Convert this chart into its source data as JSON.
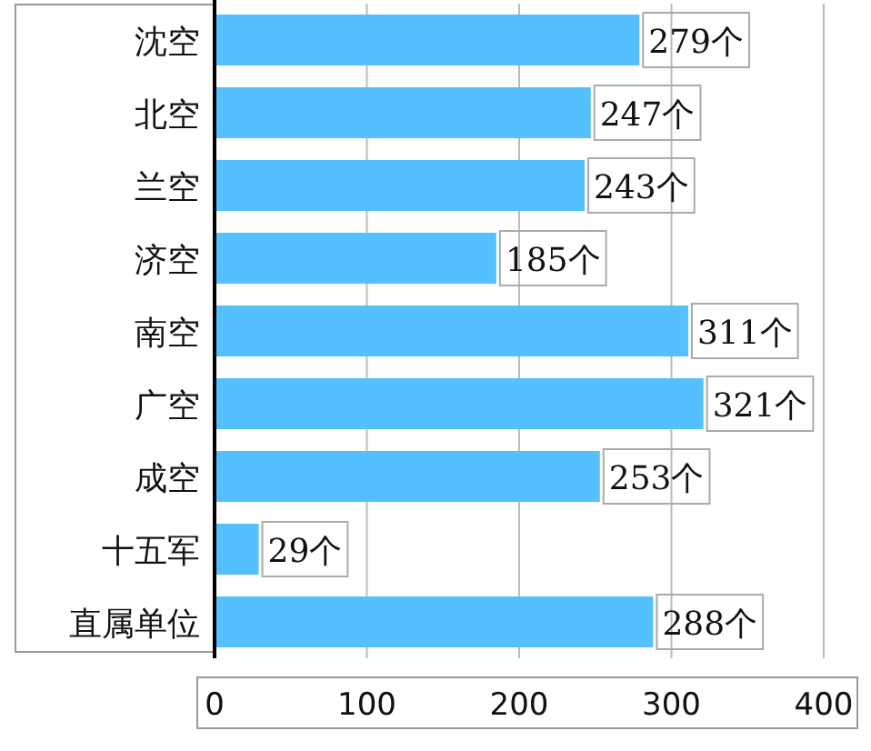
{
  "chart_data": {
    "type": "bar",
    "orientation": "horizontal",
    "categories": [
      "沈空",
      "北空",
      "兰空",
      "济空",
      "南空",
      "广空",
      "成空",
      "十五军",
      "直属单位"
    ],
    "values": [
      279,
      247,
      243,
      185,
      311,
      321,
      253,
      29,
      288
    ],
    "value_labels": [
      "279个",
      "247个",
      "243个",
      "185个",
      "311个",
      "321个",
      "253个",
      "29个",
      "288个"
    ],
    "color": "#55c0ff",
    "xlim": [
      0,
      400
    ],
    "xticks": [
      0,
      100,
      200,
      300,
      400
    ],
    "grid": "x"
  }
}
